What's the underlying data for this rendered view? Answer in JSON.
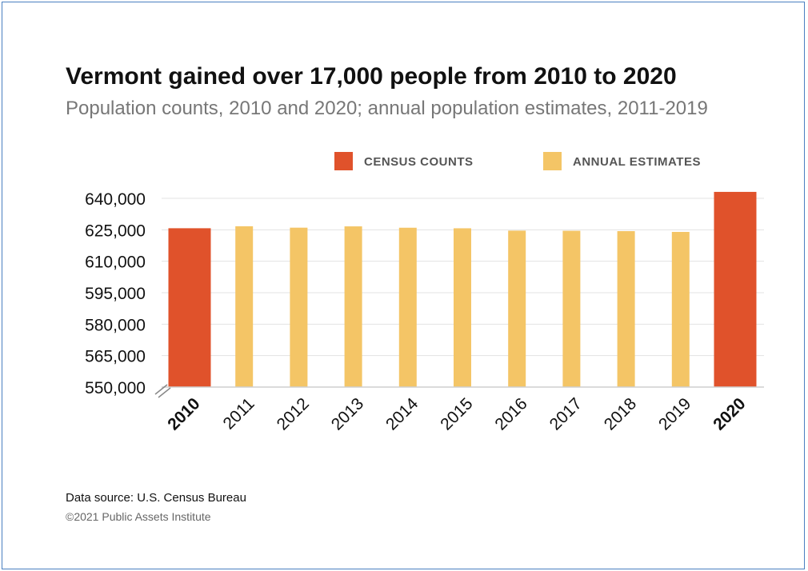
{
  "title": "Vermont gained over 17,000 people from 2010 to 2020",
  "subtitle": "Population counts, 2010 and 2020; annual population estimates, 2011-2019",
  "source": "Data source: U.S. Census Bureau",
  "copyright": "©2021 Public Assets Institute",
  "colors": {
    "census": "#E0522B",
    "estimates": "#F4C566",
    "grid": "#e3e3e3",
    "text": "#111111"
  },
  "chart_data": {
    "type": "bar",
    "title": "Vermont gained over 17,000 people from 2010 to 2020",
    "subtitle": "Population counts, 2010 and 2020; annual population estimates, 2011-2019",
    "categories": [
      "2010",
      "2011",
      "2012",
      "2013",
      "2014",
      "2015",
      "2016",
      "2017",
      "2018",
      "2019",
      "2020"
    ],
    "values": [
      625741,
      626687,
      626011,
      626630,
      625980,
      625720,
      624594,
      624525,
      624358,
      623989,
      643077
    ],
    "series_type": [
      "census",
      "estimate",
      "estimate",
      "estimate",
      "estimate",
      "estimate",
      "estimate",
      "estimate",
      "estimate",
      "estimate",
      "census"
    ],
    "legend": [
      {
        "key": "census",
        "label": "CENSUS COUNTS"
      },
      {
        "key": "estimate",
        "label": "ANNUAL ESTIMATES"
      }
    ],
    "legend_position": "top-right",
    "ylim": [
      550000,
      640000
    ],
    "yticks": [
      550000,
      565000,
      580000,
      595000,
      610000,
      625000,
      640000
    ],
    "ytick_labels": [
      "550,000",
      "565,000",
      "580,000",
      "595,000",
      "610,000",
      "625,000",
      "640,000"
    ],
    "bold_categories": [
      "2010",
      "2020"
    ],
    "axis_break": true,
    "grid": true
  }
}
